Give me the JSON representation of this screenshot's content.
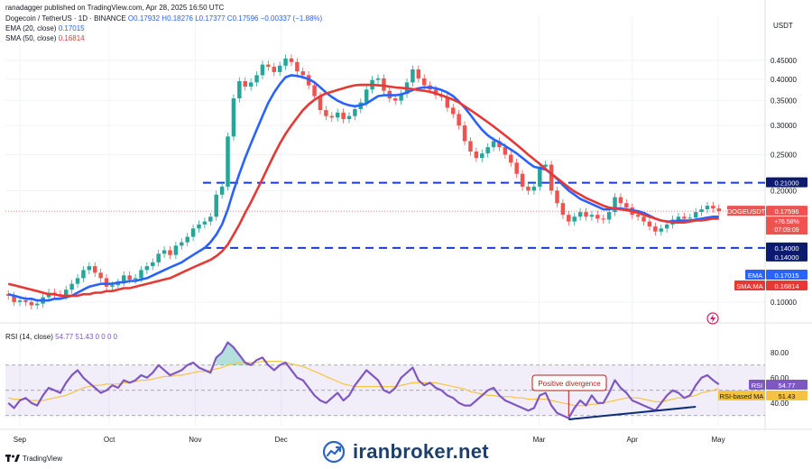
{
  "header": {
    "published": "ranadagger published on TradingView.com, Apr 28, 2025 16:50 UTC",
    "symbol_line": "Dogecoin / TetherUS · 1D · BINANCE",
    "ohlc": "O0.17932 H0.18276 L0.17377 C0.17596 −0.00337 (−1.88%)",
    "ema_label": "EMA (20, close)",
    "ema_value": "0.17015",
    "sma_label": "SMA (50, close)",
    "sma_value": "0.16814",
    "currency": "USDT"
  },
  "rsi_header": {
    "label": "RSI (14, close)",
    "values": "54.77  51.43  0  0  0  0"
  },
  "annotation": "Positive divergence",
  "watermark": "iranbroker.net",
  "footer_logo": "TradingView",
  "colors": {
    "up": "#26a69a",
    "down": "#ef5350",
    "ema": "#2962ff",
    "sma": "#e53935",
    "rsi": "#7e57c2",
    "rsi_ma": "#f5c342",
    "level": "#1a3bd1"
  },
  "chart_data": [
    {
      "type": "line",
      "title": "Dogecoin / TetherUS · 1D · BINANCE",
      "ylabel": "USDT",
      "y_scale": "log",
      "ylim": [
        0.095,
        0.5
      ],
      "y_ticks": [
        "0.45000",
        "0.40000",
        "0.35000",
        "0.30000",
        "0.25000",
        "0.20000",
        "0.10000"
      ],
      "x_ticks": [
        "Sep",
        "Oct",
        "Nov",
        "Dec",
        "Mar",
        "Apr",
        "May"
      ],
      "grid": true,
      "series": [
        {
          "name": "DOGEUSDT",
          "values": [
            0.104,
            0.1,
            0.101,
            0.1,
            0.098,
            0.099,
            0.103,
            0.106,
            0.105,
            0.104,
            0.108,
            0.112,
            0.116,
            0.122,
            0.125,
            0.12,
            0.116,
            0.11,
            0.111,
            0.113,
            0.118,
            0.115,
            0.116,
            0.122,
            0.125,
            0.128,
            0.135,
            0.138,
            0.134,
            0.142,
            0.145,
            0.15,
            0.158,
            0.162,
            0.165,
            0.17,
            0.195,
            0.205,
            0.28,
            0.355,
            0.395,
            0.382,
            0.392,
            0.41,
            0.438,
            0.432,
            0.418,
            0.435,
            0.455,
            0.445,
            0.42,
            0.41,
            0.385,
            0.36,
            0.33,
            0.318,
            0.315,
            0.325,
            0.312,
            0.318,
            0.332,
            0.346,
            0.375,
            0.398,
            0.402,
            0.372,
            0.355,
            0.35,
            0.365,
            0.392,
            0.425,
            0.402,
            0.385,
            0.375,
            0.362,
            0.358,
            0.335,
            0.322,
            0.3,
            0.272,
            0.255,
            0.245,
            0.252,
            0.262,
            0.272,
            0.262,
            0.25,
            0.238,
            0.222,
            0.205,
            0.2,
            0.205,
            0.232,
            0.235,
            0.2,
            0.185,
            0.172,
            0.165,
            0.17,
            0.175,
            0.17,
            0.172,
            0.168,
            0.167,
            0.175,
            0.192,
            0.185,
            0.18,
            0.172,
            0.17,
            0.165,
            0.16,
            0.155,
            0.158,
            0.162,
            0.167,
            0.17,
            0.168,
            0.169,
            0.175,
            0.178,
            0.182,
            0.179,
            0.176
          ]
        },
        {
          "name": "EMA",
          "values": [
            0.105,
            0.104,
            0.103,
            0.102,
            0.102,
            0.101,
            0.101,
            0.101,
            0.102,
            0.102,
            0.103,
            0.104,
            0.106,
            0.108,
            0.11,
            0.111,
            0.112,
            0.112,
            0.112,
            0.113,
            0.113,
            0.114,
            0.114,
            0.115,
            0.116,
            0.118,
            0.12,
            0.122,
            0.124,
            0.126,
            0.128,
            0.131,
            0.134,
            0.137,
            0.14,
            0.145,
            0.152,
            0.162,
            0.178,
            0.2,
            0.222,
            0.245,
            0.268,
            0.292,
            0.318,
            0.345,
            0.368,
            0.388,
            0.405,
            0.41,
            0.408,
            0.405,
            0.4,
            0.392,
            0.38,
            0.368,
            0.358,
            0.35,
            0.344,
            0.34,
            0.338,
            0.34,
            0.344,
            0.352,
            0.36,
            0.362,
            0.362,
            0.362,
            0.364,
            0.368,
            0.374,
            0.378,
            0.38,
            0.38,
            0.378,
            0.374,
            0.368,
            0.36,
            0.348,
            0.335,
            0.32,
            0.305,
            0.292,
            0.282,
            0.275,
            0.27,
            0.264,
            0.258,
            0.252,
            0.245,
            0.238,
            0.232,
            0.23,
            0.228,
            0.222,
            0.215,
            0.207,
            0.2,
            0.195,
            0.19,
            0.187,
            0.184,
            0.181,
            0.178,
            0.178,
            0.179,
            0.179,
            0.178,
            0.177,
            0.176,
            0.174,
            0.171,
            0.168,
            0.166,
            0.165,
            0.165,
            0.166,
            0.166,
            0.166,
            0.167,
            0.168,
            0.169,
            0.17,
            0.17
          ]
        },
        {
          "name": "SMA",
          "values": [
            0.112,
            0.111,
            0.11,
            0.109,
            0.108,
            0.107,
            0.106,
            0.105,
            0.105,
            0.104,
            0.104,
            0.104,
            0.104,
            0.105,
            0.105,
            0.106,
            0.106,
            0.107,
            0.107,
            0.108,
            0.109,
            0.109,
            0.11,
            0.111,
            0.112,
            0.113,
            0.114,
            0.115,
            0.116,
            0.118,
            0.12,
            0.122,
            0.124,
            0.126,
            0.128,
            0.13,
            0.133,
            0.137,
            0.143,
            0.152,
            0.162,
            0.174,
            0.186,
            0.2,
            0.215,
            0.232,
            0.25,
            0.268,
            0.285,
            0.3,
            0.315,
            0.33,
            0.342,
            0.352,
            0.36,
            0.366,
            0.37,
            0.374,
            0.378,
            0.382,
            0.385,
            0.386,
            0.386,
            0.386,
            0.385,
            0.384,
            0.382,
            0.38,
            0.379,
            0.378,
            0.376,
            0.374,
            0.372,
            0.37,
            0.366,
            0.362,
            0.357,
            0.352,
            0.346,
            0.338,
            0.33,
            0.322,
            0.314,
            0.306,
            0.298,
            0.29,
            0.282,
            0.274,
            0.266,
            0.258,
            0.25,
            0.243,
            0.236,
            0.229,
            0.222,
            0.216,
            0.21,
            0.204,
            0.199,
            0.195,
            0.191,
            0.188,
            0.185,
            0.182,
            0.18,
            0.179,
            0.178,
            0.177,
            0.176,
            0.174,
            0.172,
            0.17,
            0.168,
            0.166,
            0.165,
            0.164,
            0.164,
            0.164,
            0.165,
            0.166,
            0.166,
            0.167,
            0.168,
            0.168
          ]
        }
      ],
      "levels": [
        {
          "label": "0.21000",
          "value": 0.21
        },
        {
          "label": "0.14000",
          "value": 0.14
        }
      ],
      "price_labels": [
        {
          "name": "DOGEUSDT",
          "value": "0.17596",
          "sub1": "+76.58%",
          "sub2": "07:09:09"
        },
        {
          "name": "EMA",
          "value": "0.17015"
        },
        {
          "name": "SMA:MA",
          "value": "0.16814"
        }
      ]
    },
    {
      "type": "line",
      "title": "RSI (14, close)",
      "ylim": [
        22,
        92
      ],
      "y_ticks": [
        "80.00",
        "60.00",
        "40.00"
      ],
      "band": [
        30,
        70
      ],
      "series": [
        {
          "name": "RSI",
          "values": [
            40,
            36,
            42,
            44,
            40,
            38,
            46,
            52,
            50,
            48,
            56,
            62,
            66,
            60,
            56,
            52,
            48,
            50,
            54,
            52,
            58,
            56,
            58,
            62,
            60,
            64,
            70,
            66,
            62,
            64,
            66,
            70,
            72,
            68,
            66,
            64,
            76,
            80,
            88,
            84,
            78,
            72,
            70,
            74,
            76,
            70,
            66,
            70,
            72,
            66,
            60,
            58,
            52,
            46,
            42,
            40,
            44,
            48,
            42,
            46,
            54,
            60,
            66,
            62,
            58,
            50,
            48,
            52,
            60,
            64,
            68,
            58,
            54,
            56,
            52,
            50,
            46,
            44,
            40,
            38,
            38,
            42,
            46,
            50,
            52,
            46,
            42,
            40,
            38,
            36,
            34,
            36,
            46,
            48,
            38,
            32,
            30,
            28,
            36,
            42,
            38,
            46,
            40,
            40,
            48,
            58,
            52,
            48,
            42,
            40,
            38,
            36,
            34,
            40,
            46,
            50,
            48,
            44,
            46,
            54,
            60,
            62,
            58,
            54.77
          ]
        },
        {
          "name": "RSI-based MA",
          "values": [
            44,
            43,
            43,
            43,
            42,
            42,
            42,
            43,
            44,
            45,
            46,
            48,
            50,
            52,
            53,
            54,
            54,
            55,
            55,
            55,
            56,
            56,
            57,
            58,
            58,
            59,
            60,
            61,
            61,
            62,
            62,
            63,
            64,
            65,
            65,
            66,
            67,
            68,
            70,
            71,
            72,
            72,
            72,
            72,
            73,
            73,
            73,
            73,
            72,
            71,
            70,
            69,
            67,
            65,
            63,
            61,
            59,
            57,
            55,
            54,
            53,
            53,
            53,
            53,
            53,
            53,
            53,
            53,
            54,
            55,
            56,
            56,
            56,
            56,
            56,
            55,
            54,
            53,
            52,
            51,
            49,
            48,
            47,
            46,
            46,
            45,
            45,
            45,
            44,
            44,
            43,
            43,
            43,
            43,
            42,
            41,
            40,
            39,
            38,
            38,
            38,
            39,
            39,
            40,
            41,
            42,
            43,
            44,
            44,
            44,
            43,
            42,
            41,
            41,
            42,
            43,
            44,
            44,
            45,
            46,
            48,
            49,
            50,
            51.43
          ]
        }
      ],
      "value_labels": [
        {
          "name": "RSI",
          "value": "54.77"
        },
        {
          "name": "RSI-based MA",
          "value": "51.43"
        }
      ],
      "divergence_line": {
        "from_index": 97,
        "to_index": 119,
        "from_value": 27,
        "to_value": 37
      }
    }
  ]
}
